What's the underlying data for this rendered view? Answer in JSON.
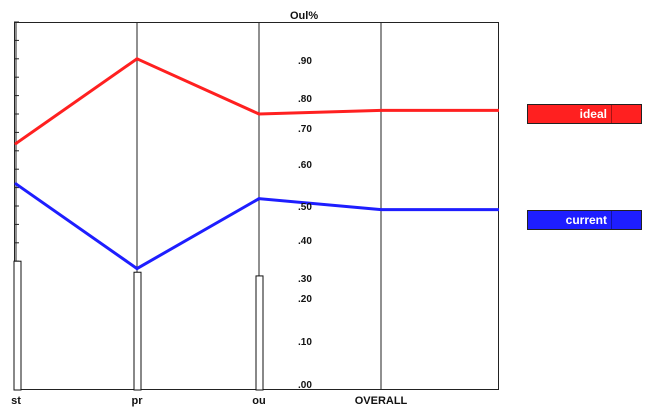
{
  "chart_data": {
    "type": "line",
    "categories": [
      "st",
      "pr",
      "ou",
      "OVERALL"
    ],
    "series": [
      {
        "name": "ideal",
        "color": "#ff2020",
        "values": [
          0.67,
          0.9,
          0.75,
          0.76
        ]
      },
      {
        "name": "current",
        "color": "#1e1eff",
        "values": [
          0.56,
          0.33,
          0.52,
          0.49
        ]
      }
    ],
    "bars": [
      0.35,
      0.32,
      0.31
    ],
    "ylim": [
      0,
      1
    ],
    "title": "",
    "top_label": "Oul%",
    "y_tick_labels": [
      ".90",
      ".80",
      ".70",
      ".60",
      ".50",
      ".40",
      ".30",
      ".20",
      ".10",
      ".00"
    ],
    "legend_placement": "right",
    "grid": false
  }
}
